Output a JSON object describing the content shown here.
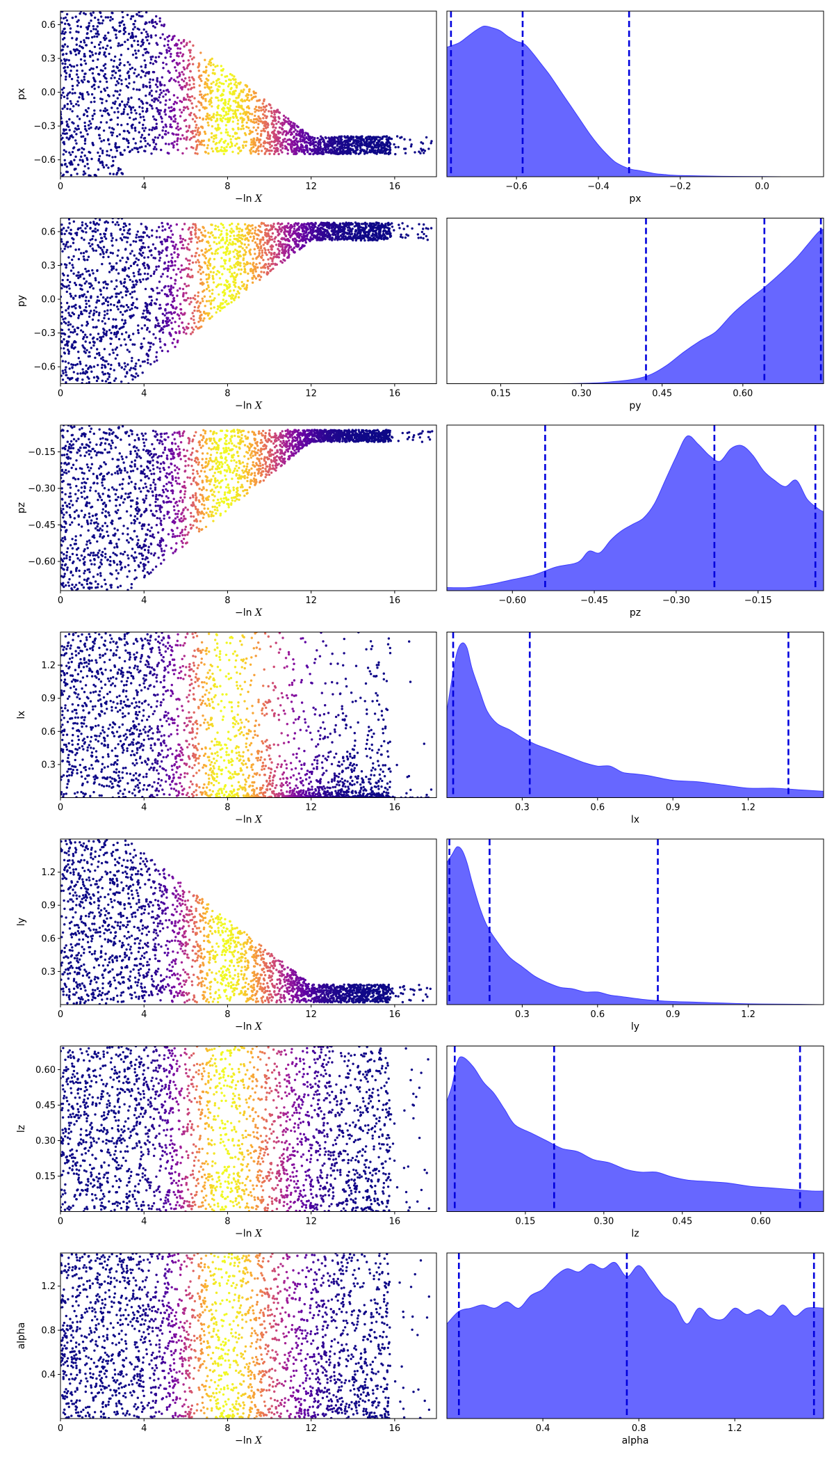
{
  "chart_data": {
    "type": "scatter",
    "shared": {
      "xlabel_neg": "−ln",
      "xlabel_var": "X",
      "trace_xlim": [
        0,
        18
      ],
      "trace_xticks": [
        0,
        4,
        8,
        12,
        16
      ],
      "colormap": [
        "#0d0887",
        "#5b02a3",
        "#9a179b",
        "#cb4678",
        "#eb7852",
        "#fbb32f",
        "#f0f921"
      ],
      "density_color": "#5a5aff",
      "quantile_line_color": "#0000dd"
    },
    "rows": [
      {
        "param": "px",
        "trace": {
          "ylim": [
            -0.75,
            0.72
          ],
          "yticks": [
            0.6,
            0.3,
            0.0,
            -0.3,
            -0.6
          ],
          "yticklabels": [
            "0.6",
            "0.3",
            "0.0",
            "−0.3",
            "−0.6"
          ],
          "converge": -0.55,
          "spread": 0.18
        },
        "density": {
          "xlim": [
            -0.77,
            0.15
          ],
          "xticks": [
            -0.6,
            -0.4,
            -0.2,
            0.0
          ],
          "xticklabels": [
            "−0.6",
            "−0.4",
            "−0.2",
            "0.0"
          ],
          "x": [
            -0.77,
            -0.74,
            -0.72,
            -0.7,
            -0.68,
            -0.66,
            -0.64,
            -0.62,
            -0.6,
            -0.58,
            -0.56,
            -0.54,
            -0.52,
            -0.5,
            -0.48,
            -0.46,
            -0.44,
            -0.42,
            -0.4,
            -0.38,
            -0.36,
            -0.34,
            -0.32,
            -0.3,
            -0.28,
            -0.26,
            -0.24,
            -0.22,
            -0.2,
            -0.15,
            -0.1,
            -0.05,
            0.0,
            0.05,
            0.1,
            0.15
          ],
          "y": [
            0.86,
            0.89,
            0.93,
            0.97,
            1.0,
            0.99,
            0.97,
            0.93,
            0.9,
            0.88,
            0.82,
            0.75,
            0.68,
            0.6,
            0.52,
            0.44,
            0.36,
            0.28,
            0.21,
            0.15,
            0.1,
            0.07,
            0.05,
            0.04,
            0.03,
            0.02,
            0.015,
            0.01,
            0.008,
            0.005,
            0.003,
            0.002,
            0.001,
            0.0,
            0.0,
            0.0
          ],
          "ymax": 1.1,
          "quantiles": [
            -0.76,
            -0.585,
            -0.325
          ]
        }
      },
      {
        "param": "py",
        "trace": {
          "ylim": [
            -0.75,
            0.72
          ],
          "yticks": [
            0.6,
            0.3,
            0.0,
            -0.3,
            -0.6
          ],
          "yticklabels": [
            "0.6",
            "0.3",
            "0.0",
            "−0.3",
            "−0.6"
          ],
          "converge": 0.68,
          "spread": 0.18
        },
        "density": {
          "xlim": [
            0.05,
            0.75
          ],
          "xticks": [
            0.15,
            0.3,
            0.45,
            0.6
          ],
          "xticklabels": [
            "0.15",
            "0.30",
            "0.45",
            "0.60"
          ],
          "x": [
            0.05,
            0.1,
            0.15,
            0.2,
            0.25,
            0.3,
            0.35,
            0.4,
            0.43,
            0.46,
            0.49,
            0.52,
            0.55,
            0.58,
            0.61,
            0.64,
            0.67,
            0.7,
            0.72,
            0.74,
            0.75
          ],
          "y": [
            0.0,
            0.0,
            0.0,
            0.0,
            0.0,
            0.002,
            0.01,
            0.03,
            0.06,
            0.12,
            0.2,
            0.27,
            0.33,
            0.44,
            0.53,
            0.61,
            0.7,
            0.8,
            0.88,
            0.96,
            0.98
          ],
          "ymax": 1.05,
          "quantiles": [
            0.42,
            0.64,
            0.745
          ]
        }
      },
      {
        "param": "pz",
        "trace": {
          "ylim": [
            -0.72,
            -0.04
          ],
          "yticks": [
            -0.15,
            -0.3,
            -0.45,
            -0.6
          ],
          "yticklabels": [
            "−0.15",
            "−0.30",
            "−0.45",
            "−0.60"
          ],
          "converge": -0.06,
          "spread": 0.12
        },
        "density": {
          "xlim": [
            -0.72,
            -0.03
          ],
          "xticks": [
            -0.6,
            -0.45,
            -0.3,
            -0.15
          ],
          "xticklabels": [
            "−0.60",
            "−0.45",
            "−0.30",
            "−0.15"
          ],
          "x": [
            -0.72,
            -0.68,
            -0.64,
            -0.6,
            -0.56,
            -0.52,
            -0.48,
            -0.46,
            -0.44,
            -0.42,
            -0.4,
            -0.38,
            -0.36,
            -0.34,
            -0.32,
            -0.3,
            -0.28,
            -0.26,
            -0.24,
            -0.22,
            -0.2,
            -0.18,
            -0.16,
            -0.14,
            -0.12,
            -0.1,
            -0.08,
            -0.06,
            -0.04,
            -0.03
          ],
          "y": [
            0.02,
            0.02,
            0.04,
            0.07,
            0.1,
            0.15,
            0.18,
            0.25,
            0.24,
            0.32,
            0.38,
            0.42,
            0.46,
            0.55,
            0.7,
            0.85,
            0.98,
            0.93,
            0.86,
            0.82,
            0.9,
            0.92,
            0.86,
            0.76,
            0.7,
            0.66,
            0.7,
            0.58,
            0.52,
            0.5
          ],
          "ymax": 1.05,
          "quantiles": [
            -0.54,
            -0.23,
            -0.045
          ]
        }
      },
      {
        "param": "lx",
        "trace": {
          "ylim": [
            0.0,
            1.5
          ],
          "yticks": [
            1.2,
            0.9,
            0.6,
            0.3
          ],
          "yticklabels": [
            "1.2",
            "0.9",
            "0.6",
            "0.3"
          ],
          "converge": null,
          "spread": 0.0
        },
        "density": {
          "xlim": [
            0.0,
            1.5
          ],
          "xticks": [
            0.3,
            0.6,
            0.9,
            1.2
          ],
          "xticklabels": [
            "0.3",
            "0.6",
            "0.9",
            "1.2"
          ],
          "x": [
            0.0,
            0.02,
            0.04,
            0.06,
            0.08,
            0.1,
            0.13,
            0.16,
            0.2,
            0.25,
            0.3,
            0.35,
            0.4,
            0.45,
            0.5,
            0.55,
            0.6,
            0.65,
            0.7,
            0.75,
            0.8,
            0.9,
            1.0,
            1.1,
            1.2,
            1.3,
            1.4,
            1.5
          ],
          "y": [
            0.55,
            0.75,
            0.92,
            0.98,
            0.95,
            0.82,
            0.68,
            0.55,
            0.47,
            0.43,
            0.38,
            0.34,
            0.31,
            0.28,
            0.25,
            0.22,
            0.2,
            0.2,
            0.16,
            0.15,
            0.14,
            0.11,
            0.1,
            0.08,
            0.06,
            0.06,
            0.05,
            0.04
          ],
          "ymax": 1.05,
          "quantiles": [
            0.025,
            0.33,
            1.36
          ]
        }
      },
      {
        "param": "ly",
        "trace": {
          "ylim": [
            0.0,
            1.5
          ],
          "yticks": [
            1.2,
            0.9,
            0.6,
            0.3
          ],
          "yticklabels": [
            "1.2",
            "0.9",
            "0.6",
            "0.3"
          ],
          "converge": 0.02,
          "spread": 0.18
        },
        "density": {
          "xlim": [
            0.0,
            1.5
          ],
          "xticks": [
            0.3,
            0.6,
            0.9,
            1.2
          ],
          "xticklabels": [
            "0.3",
            "0.6",
            "0.9",
            "1.2"
          ],
          "x": [
            0.0,
            0.02,
            0.04,
            0.06,
            0.08,
            0.1,
            0.13,
            0.16,
            0.2,
            0.25,
            0.3,
            0.35,
            0.4,
            0.45,
            0.5,
            0.55,
            0.6,
            0.65,
            0.7,
            0.8,
            0.9,
            1.0,
            1.1,
            1.2,
            1.3,
            1.4,
            1.5
          ],
          "y": [
            0.9,
            0.95,
            1.0,
            0.98,
            0.9,
            0.78,
            0.62,
            0.5,
            0.4,
            0.3,
            0.24,
            0.18,
            0.14,
            0.11,
            0.1,
            0.08,
            0.08,
            0.06,
            0.05,
            0.03,
            0.02,
            0.015,
            0.01,
            0.005,
            0.003,
            0.002,
            0.0
          ],
          "ymax": 1.05,
          "quantiles": [
            0.01,
            0.17,
            0.84
          ]
        }
      },
      {
        "param": "lz",
        "trace": {
          "ylim": [
            0.0,
            0.7
          ],
          "yticks": [
            0.6,
            0.45,
            0.3,
            0.15
          ],
          "yticklabels": [
            "0.60",
            "0.45",
            "0.30",
            "0.15"
          ],
          "converge": null,
          "spread": 0.0
        },
        "density": {
          "xlim": [
            0.0,
            0.72
          ],
          "xticks": [
            0.15,
            0.3,
            0.45,
            0.6
          ],
          "xticklabels": [
            "0.15",
            "0.30",
            "0.45",
            "0.60"
          ],
          "x": [
            0.0,
            0.01,
            0.02,
            0.03,
            0.05,
            0.07,
            0.09,
            0.11,
            0.13,
            0.16,
            0.19,
            0.22,
            0.25,
            0.28,
            0.31,
            0.34,
            0.37,
            0.4,
            0.43,
            0.46,
            0.5,
            0.54,
            0.58,
            0.62,
            0.66,
            0.7,
            0.72
          ],
          "y": [
            0.7,
            0.8,
            0.95,
            0.98,
            0.92,
            0.82,
            0.75,
            0.65,
            0.55,
            0.5,
            0.45,
            0.4,
            0.38,
            0.33,
            0.31,
            0.27,
            0.25,
            0.25,
            0.22,
            0.2,
            0.19,
            0.18,
            0.16,
            0.15,
            0.14,
            0.13,
            0.13
          ],
          "ymax": 1.05,
          "quantiles": [
            0.015,
            0.205,
            0.675
          ]
        }
      },
      {
        "param": "alpha",
        "trace": {
          "ylim": [
            0.0,
            1.5
          ],
          "yticks": [
            1.2,
            0.8,
            0.4
          ],
          "yticklabels": [
            "1.2",
            "0.8",
            "0.4"
          ],
          "converge": null,
          "spread": 0.0
        },
        "density": {
          "xlim": [
            0.0,
            1.57
          ],
          "xticks": [
            0.4,
            0.8,
            1.2
          ],
          "xticklabels": [
            "0.4",
            "0.8",
            "1.2"
          ],
          "x": [
            0.0,
            0.05,
            0.1,
            0.15,
            0.2,
            0.25,
            0.3,
            0.35,
            0.4,
            0.45,
            0.5,
            0.55,
            0.6,
            0.65,
            0.7,
            0.75,
            0.8,
            0.85,
            0.9,
            0.95,
            1.0,
            1.05,
            1.1,
            1.15,
            1.2,
            1.25,
            1.3,
            1.35,
            1.4,
            1.45,
            1.5,
            1.57
          ],
          "y": [
            0.6,
            0.68,
            0.7,
            0.72,
            0.7,
            0.74,
            0.7,
            0.78,
            0.82,
            0.9,
            0.95,
            0.93,
            0.98,
            0.95,
            0.99,
            0.9,
            0.97,
            0.88,
            0.78,
            0.72,
            0.6,
            0.7,
            0.64,
            0.63,
            0.7,
            0.66,
            0.69,
            0.65,
            0.72,
            0.65,
            0.7,
            0.7
          ],
          "ymax": 1.05,
          "quantiles": [
            0.05,
            0.75,
            1.53
          ]
        }
      }
    ]
  }
}
